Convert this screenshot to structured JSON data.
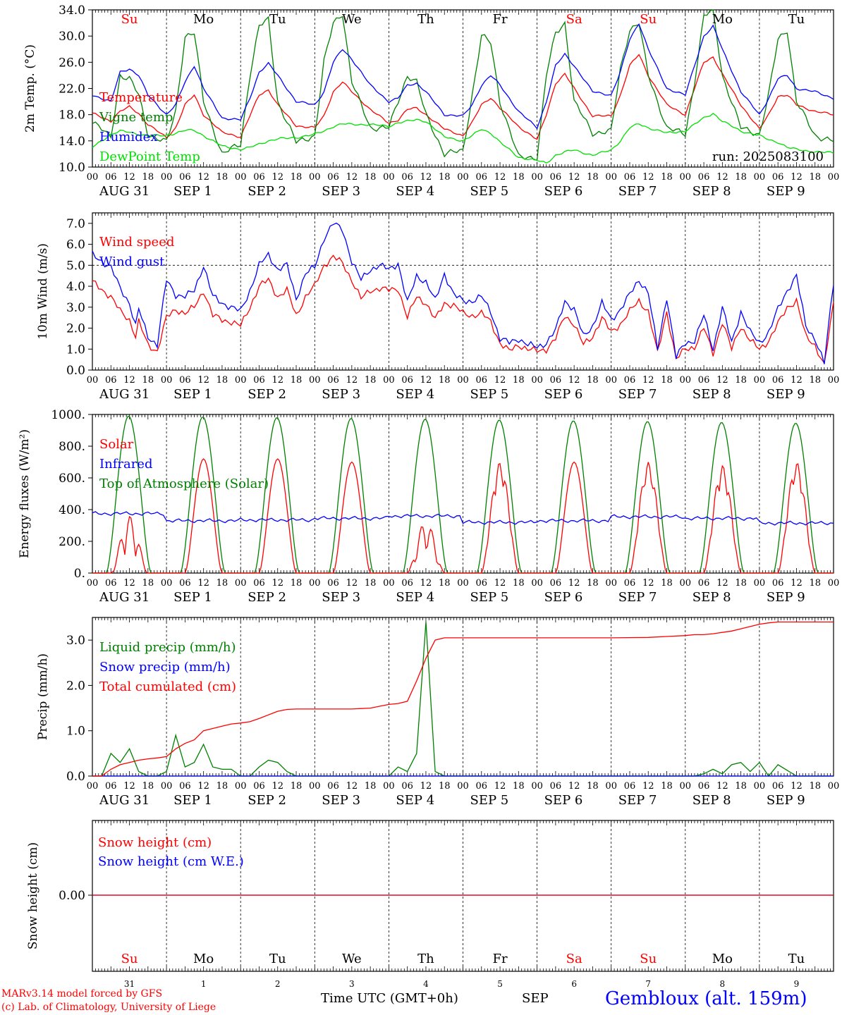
{
  "day_letters": [
    "Su",
    "Mo",
    "Tu",
    "We",
    "Th",
    "Fr",
    "Sa",
    "Su",
    "Mo",
    "Tu"
  ],
  "weekend_flags": [
    1,
    0,
    0,
    0,
    0,
    0,
    1,
    1,
    0,
    0
  ],
  "date_labels": [
    "AUG 31",
    "SEP  1",
    "SEP  2",
    "SEP  3",
    "SEP  4",
    "SEP  5",
    "SEP  6",
    "SEP  7",
    "SEP  8",
    "SEP  9"
  ],
  "hour_labels": [
    "00",
    "06",
    "12",
    "18"
  ],
  "bottom_day_numbers": [
    "31",
    "1",
    "2",
    "3",
    "4",
    "5",
    "6",
    "7",
    "8",
    "9"
  ],
  "bottom_month": "SEP",
  "footer": {
    "model_line": "MARv3.14 model forced by GFS",
    "credit_line": "(c) Lab. of Climatology, University of Liege",
    "time_axis_label": "Time UTC (GMT+0h)",
    "station": "Gembloux (alt. 159m)"
  },
  "colors": {
    "red": "#ff0000",
    "green": "#008000",
    "blue": "#0000ff",
    "lightgreen": "#00e000"
  },
  "chart_data": [
    {
      "type": "line",
      "title": "",
      "ylabel": "2m Temp. (°C)",
      "ylim": [
        10,
        34
      ],
      "yticks": [
        "10.0",
        "14.0",
        "18.0",
        "22.0",
        "26.0",
        "30.0",
        "34.0"
      ],
      "xlabel": "",
      "annotation": "run: 2025083100",
      "x_hours_from_start": [
        0,
        6,
        9,
        12,
        15,
        18,
        24,
        27,
        30,
        33,
        36,
        42,
        48,
        51,
        54,
        57,
        60,
        66,
        72,
        75,
        78,
        81,
        84,
        90,
        96,
        99,
        102,
        105,
        108,
        114,
        120,
        123,
        126,
        129,
        132,
        138,
        144,
        147,
        150,
        153,
        156,
        162,
        168,
        171,
        174,
        177,
        180,
        186,
        192,
        195,
        198,
        201,
        204,
        210,
        216,
        219,
        222,
        225,
        228,
        234,
        240
      ],
      "series": [
        {
          "name": "Temperature",
          "color": "red",
          "values": [
            18.2,
            17.0,
            18.5,
            19.2,
            18.2,
            16.5,
            14.5,
            16.0,
            19.5,
            21.0,
            18.0,
            15.3,
            14.6,
            17.8,
            21.0,
            21.8,
            19.5,
            16.3,
            16.0,
            17.8,
            21.5,
            23.0,
            21.5,
            18.8,
            16.7,
            17.2,
            18.8,
            19.0,
            18.0,
            15.8,
            14.8,
            16.8,
            19.5,
            20.6,
            19.0,
            16.2,
            14.2,
            18.0,
            22.8,
            24.2,
            22.0,
            17.8,
            17.8,
            21.0,
            25.5,
            27.2,
            24.0,
            19.5,
            18.0,
            22.0,
            26.0,
            26.8,
            24.2,
            19.5,
            15.8,
            18.0,
            20.8,
            21.0,
            19.5,
            18.5,
            18.0
          ]
        },
        {
          "name": "Vigne temp",
          "color": "green",
          "values": [
            17.0,
            14.5,
            24.0,
            23.5,
            21.0,
            15.0,
            13.8,
            18.5,
            30.0,
            30.5,
            20.0,
            12.0,
            13.5,
            24.0,
            31.5,
            32.5,
            20.0,
            13.8,
            14.8,
            26.0,
            32.0,
            33.5,
            23.0,
            16.0,
            16.0,
            20.0,
            24.0,
            23.0,
            18.0,
            12.0,
            12.5,
            21.0,
            30.0,
            29.0,
            20.0,
            11.5,
            11.5,
            24.0,
            30.5,
            32.0,
            20.0,
            15.2,
            15.5,
            25.0,
            31.0,
            32.0,
            24.0,
            16.0,
            15.0,
            23.0,
            33.0,
            34.0,
            24.0,
            16.0,
            15.0,
            21.0,
            29.5,
            31.0,
            20.0,
            14.8,
            14.0
          ]
        },
        {
          "name": "Humidex",
          "color": "blue",
          "values": [
            21.0,
            20.0,
            24.5,
            25.0,
            24.0,
            21.0,
            18.0,
            19.5,
            23.0,
            25.5,
            22.0,
            17.5,
            17.2,
            20.5,
            24.5,
            25.8,
            24.0,
            20.0,
            19.5,
            21.5,
            26.0,
            28.0,
            26.5,
            22.5,
            20.0,
            20.5,
            22.5,
            22.8,
            21.5,
            18.0,
            17.8,
            19.5,
            22.5,
            24.0,
            22.5,
            18.5,
            16.0,
            20.0,
            25.5,
            27.2,
            25.5,
            21.5,
            21.0,
            24.5,
            29.5,
            32.0,
            28.0,
            22.0,
            21.0,
            25.5,
            30.0,
            31.5,
            28.0,
            21.5,
            18.0,
            20.5,
            23.5,
            24.0,
            22.0,
            21.5,
            20.5
          ]
        },
        {
          "name": "DewPoint Temp",
          "color": "lightgreen",
          "values": [
            13.0,
            15.0,
            15.5,
            15.3,
            15.0,
            14.8,
            14.8,
            15.2,
            15.6,
            15.6,
            14.8,
            13.2,
            12.7,
            13.0,
            13.5,
            14.0,
            14.3,
            14.5,
            15.0,
            15.5,
            16.2,
            16.6,
            16.5,
            16.5,
            16.2,
            16.8,
            17.0,
            17.2,
            17.0,
            14.6,
            14.0,
            14.8,
            15.8,
            15.2,
            13.8,
            11.5,
            11.0,
            10.6,
            11.8,
            12.3,
            12.6,
            11.8,
            12.6,
            14.0,
            16.0,
            16.6,
            16.0,
            15.2,
            15.5,
            16.5,
            17.5,
            18.2,
            17.0,
            15.5,
            14.8,
            14.2,
            13.8,
            13.0,
            12.7,
            12.3,
            12.2
          ]
        }
      ]
    },
    {
      "type": "line",
      "title": "",
      "ylabel": "10m Wind (m/s)",
      "ylim": [
        0,
        7.5
      ],
      "yticks": [
        "0.0",
        "1.0",
        "2.0",
        "3.0",
        "4.0",
        "5.0",
        "6.0",
        "7.0"
      ],
      "reference_line": 5.0,
      "xlabel": "",
      "x_hours_from_start": [
        0,
        6,
        9,
        12,
        14,
        15,
        18,
        21,
        24,
        27,
        30,
        33,
        36,
        39,
        42,
        45,
        48,
        51,
        54,
        57,
        60,
        63,
        66,
        69,
        72,
        75,
        78,
        81,
        84,
        87,
        90,
        93,
        96,
        99,
        102,
        105,
        108,
        111,
        114,
        117,
        120,
        123,
        126,
        129,
        132,
        135,
        138,
        141,
        144,
        147,
        150,
        153,
        156,
        159,
        162,
        165,
        168,
        171,
        174,
        177,
        180,
        183,
        186,
        189,
        192,
        195,
        198,
        201,
        204,
        207,
        210,
        213,
        216,
        219,
        222,
        225,
        228,
        231,
        234,
        237,
        240
      ],
      "series": [
        {
          "name": "Wind speed",
          "color": "red",
          "values": [
            4.2,
            3.5,
            2.8,
            2.4,
            1.6,
            2.3,
            1.2,
            0.9,
            2.5,
            2.9,
            2.7,
            3.0,
            3.8,
            2.6,
            2.4,
            2.3,
            2.1,
            3.0,
            4.0,
            4.3,
            3.5,
            3.8,
            2.6,
            3.5,
            4.0,
            5.0,
            5.4,
            5.1,
            4.3,
            3.4,
            3.8,
            3.9,
            3.8,
            3.9,
            2.5,
            3.5,
            3.2,
            2.4,
            3.2,
            3.1,
            2.7,
            2.6,
            2.7,
            2.3,
            1.3,
            0.9,
            1.2,
            1.0,
            0.9,
            1.0,
            1.5,
            2.6,
            2.2,
            1.2,
            1.6,
            2.5,
            1.8,
            2.2,
            2.8,
            3.3,
            2.8,
            0.8,
            2.8,
            0.5,
            1.0,
            1.1,
            2.0,
            0.8,
            2.3,
            1.0,
            2.1,
            1.4,
            1.0,
            1.4,
            2.2,
            3.0,
            3.3,
            1.6,
            1.2,
            0.2,
            3.2
          ]
        },
        {
          "name": "Wind gust",
          "color": "blue",
          "values": [
            5.5,
            4.9,
            3.9,
            3.2,
            2.1,
            2.9,
            1.6,
            1.2,
            4.3,
            3.6,
            3.5,
            3.8,
            5.0,
            3.5,
            3.2,
            3.0,
            2.8,
            3.8,
            5.0,
            5.5,
            4.8,
            5.0,
            3.4,
            4.6,
            4.9,
            6.3,
            7.0,
            6.7,
            5.2,
            4.3,
            4.8,
            5.0,
            4.8,
            5.1,
            3.2,
            4.5,
            4.2,
            3.3,
            4.6,
            3.6,
            3.3,
            3.3,
            3.5,
            2.8,
            1.5,
            1.3,
            1.5,
            1.2,
            1.1,
            1.3,
            1.9,
            3.3,
            2.9,
            1.6,
            2.1,
            3.2,
            2.4,
            2.9,
            3.6,
            4.3,
            3.7,
            1.0,
            3.5,
            0.6,
            1.3,
            1.4,
            2.6,
            1.0,
            3.0,
            1.3,
            2.8,
            1.8,
            1.3,
            1.8,
            2.9,
            3.8,
            4.5,
            2.1,
            1.5,
            0.3,
            4.2
          ]
        }
      ]
    },
    {
      "type": "line",
      "title": "",
      "ylabel": "Energy fluxes (W/m²)",
      "ylim": [
        0,
        1000
      ],
      "yticks": [
        "0.",
        "200.",
        "400.",
        "600.",
        "800.",
        "1000."
      ],
      "xlabel": "",
      "series": [
        {
          "name": "Solar",
          "color": "red",
          "daily_peaks": [
            360,
            720,
            720,
            700,
            330,
            700,
            700,
            700,
            680,
            700
          ]
        },
        {
          "name": "Infrared",
          "color": "blue",
          "daily_base": [
            375,
            330,
            335,
            345,
            360,
            320,
            330,
            355,
            345,
            315
          ]
        },
        {
          "name": "Top of Atmosphere (Solar)",
          "color": "green",
          "daily_peaks": [
            990,
            985,
            980,
            975,
            970,
            965,
            960,
            955,
            950,
            945
          ]
        }
      ]
    },
    {
      "type": "line",
      "title": "",
      "ylabel": "Precip (mm/h)",
      "ylim": [
        0,
        3.5
      ],
      "yticks": [
        "0.0",
        "1.0",
        "2.0",
        "3.0"
      ],
      "xlabel": "",
      "x_hours_from_start": [
        0,
        3,
        6,
        9,
        12,
        15,
        18,
        21,
        24,
        27,
        30,
        33,
        36,
        39,
        42,
        45,
        48,
        51,
        54,
        57,
        60,
        63,
        66,
        69,
        72,
        78,
        84,
        90,
        96,
        99,
        102,
        105,
        108,
        111,
        114,
        117,
        120,
        132,
        144,
        156,
        168,
        180,
        186,
        192,
        195,
        198,
        201,
        204,
        207,
        210,
        213,
        216,
        219,
        222,
        228,
        240
      ],
      "series": [
        {
          "name": "Liquid precip (mm/h)",
          "color": "green",
          "values": [
            0.0,
            0.0,
            0.5,
            0.3,
            0.6,
            0.1,
            0.0,
            0.0,
            0.1,
            0.9,
            0.2,
            0.3,
            0.7,
            0.2,
            0.15,
            0.15,
            0.0,
            0.0,
            0.2,
            0.35,
            0.3,
            0.1,
            0.0,
            0.0,
            0.0,
            0.0,
            0.0,
            0.0,
            0.0,
            0.2,
            0.1,
            0.5,
            3.4,
            0.1,
            0.0,
            0.0,
            0.0,
            0.0,
            0.0,
            0.0,
            0.0,
            0.0,
            0.0,
            0.0,
            0.0,
            0.05,
            0.15,
            0.05,
            0.25,
            0.3,
            0.1,
            0.3,
            0.0,
            0.25,
            0.0,
            0.0
          ]
        },
        {
          "name": "Snow precip (mm/h)",
          "color": "blue",
          "values": [
            0,
            0,
            0,
            0,
            0,
            0,
            0,
            0,
            0,
            0,
            0,
            0,
            0,
            0,
            0,
            0,
            0,
            0,
            0,
            0,
            0,
            0,
            0,
            0,
            0,
            0,
            0,
            0,
            0,
            0,
            0,
            0,
            0,
            0,
            0,
            0,
            0,
            0,
            0,
            0,
            0,
            0,
            0,
            0,
            0,
            0,
            0,
            0,
            0,
            0,
            0,
            0,
            0,
            0,
            0,
            0
          ]
        },
        {
          "name": "Total cumulated (cm)",
          "color": "red",
          "values": [
            0.0,
            0.0,
            0.15,
            0.25,
            0.3,
            0.35,
            0.38,
            0.4,
            0.43,
            0.6,
            0.72,
            0.8,
            1.0,
            1.05,
            1.1,
            1.15,
            1.17,
            1.2,
            1.27,
            1.35,
            1.43,
            1.47,
            1.48,
            1.48,
            1.48,
            1.48,
            1.48,
            1.5,
            1.58,
            1.6,
            1.65,
            2.1,
            2.6,
            3.0,
            3.05,
            3.05,
            3.05,
            3.05,
            3.05,
            3.05,
            3.05,
            3.06,
            3.08,
            3.1,
            3.12,
            3.12,
            3.14,
            3.17,
            3.2,
            3.25,
            3.3,
            3.35,
            3.38,
            3.4,
            3.4,
            3.4
          ]
        }
      ]
    },
    {
      "type": "line",
      "title": "",
      "ylabel": "Snow height (cm)",
      "yticks": [
        "0.00"
      ],
      "xlabel": "",
      "series": [
        {
          "name": "Snow height (cm)",
          "color": "red",
          "values": [
            0,
            0
          ]
        },
        {
          "name": "Snow height (cm W.E.)",
          "color": "blue",
          "values": [
            0,
            0
          ]
        }
      ]
    }
  ]
}
